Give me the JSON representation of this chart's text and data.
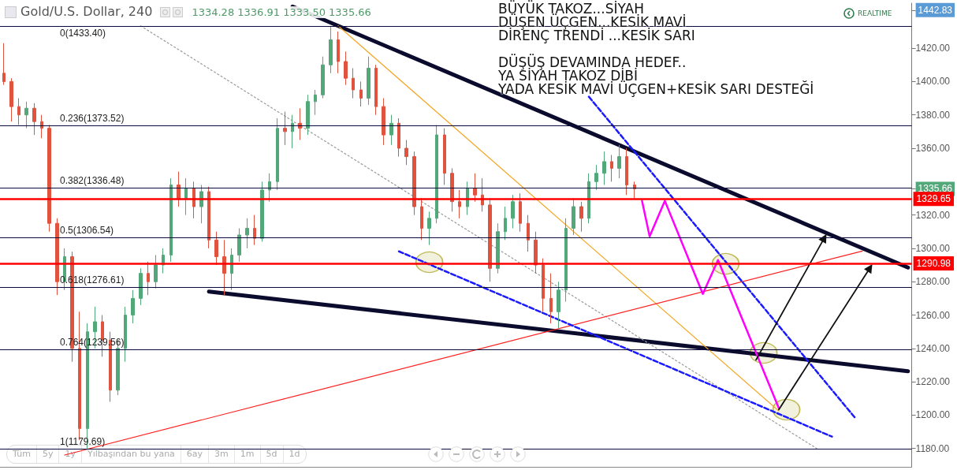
{
  "chart_data": {
    "type": "candlestick",
    "title": "Gold/U.S. Dollar, 240",
    "subtitle": "1334.28 1336.91 1333.50 1335.66",
    "annotations": [
      "BÜYÜK TAKOZ...SİYAH",
      "DÜŞEN ÜÇGEN...KESİK MAVİ",
      "DİRENÇ TRENDİ ...KESİK SARI",
      "DÜŞÜŞ DEVAMINDA HEDEF..",
      "YA SİYAH TAKOZ DİBİ",
      "YADA KESİK MAVİ ÜÇGEN+KESİK SARI DESTEĞİ",
      "REALTIME",
      "Tüm",
      "5y",
      "1y",
      "Yılbaşından bu yana",
      "6ay",
      "3m",
      "1m",
      "5d",
      "1d"
    ],
    "categories": [
      null,
      null,
      null,
      null,
      null,
      null,
      null,
      null,
      null,
      null,
      null,
      null,
      null,
      null,
      null,
      null,
      null,
      null,
      null,
      null,
      null,
      null,
      null,
      null,
      null,
      null,
      null,
      null,
      null,
      null,
      null,
      null,
      null,
      null,
      null,
      null,
      null,
      null,
      null,
      null,
      null,
      null,
      null,
      null,
      null,
      null,
      null,
      null,
      null,
      null,
      null,
      null,
      null,
      null,
      null,
      null,
      null,
      null,
      null,
      null,
      null,
      null,
      null,
      null,
      null,
      null,
      null,
      null,
      null,
      null,
      null,
      null,
      null,
      null,
      null,
      null,
      null,
      null,
      null,
      null,
      null,
      null,
      null,
      null,
      null,
      null,
      null,
      null,
      null,
      null,
      null,
      null,
      null,
      null,
      null,
      null,
      null,
      null,
      null,
      null,
      null,
      null,
      null,
      null,
      null,
      null,
      null,
      null,
      null,
      null,
      null,
      null,
      null,
      null,
      null,
      null,
      null,
      null,
      null,
      null
    ],
    "ohlc": [
      [
        1405,
        1423,
        1398,
        1400
      ],
      [
        1400,
        1402,
        1376,
        1385
      ],
      [
        1385,
        1390,
        1374,
        1380
      ],
      [
        1380,
        1388,
        1372,
        1384
      ],
      [
        1384,
        1387,
        1368,
        1376
      ],
      [
        1376,
        1380,
        1366,
        1372
      ],
      [
        1372,
        1374,
        1310,
        1315
      ],
      [
        1315,
        1318,
        1272,
        1280
      ],
      [
        1280,
        1300,
        1275,
        1295
      ],
      [
        1295,
        1298,
        1232,
        1240
      ],
      [
        1240,
        1262,
        1185,
        1192
      ],
      [
        1192,
        1255,
        1180,
        1250
      ],
      [
        1250,
        1265,
        1240,
        1256
      ],
      [
        1256,
        1260,
        1235,
        1245
      ],
      [
        1245,
        1250,
        1208,
        1215
      ],
      [
        1215,
        1245,
        1212,
        1240
      ],
      [
        1240,
        1265,
        1232,
        1260
      ],
      [
        1260,
        1275,
        1255,
        1270
      ],
      [
        1270,
        1288,
        1266,
        1285
      ],
      [
        1285,
        1292,
        1272,
        1280
      ],
      [
        1280,
        1296,
        1276,
        1290
      ],
      [
        1290,
        1300,
        1285,
        1296
      ],
      [
        1296,
        1342,
        1292,
        1338
      ],
      [
        1338,
        1346,
        1325,
        1330
      ],
      [
        1330,
        1342,
        1320,
        1336
      ],
      [
        1336,
        1340,
        1318,
        1325
      ],
      [
        1325,
        1338,
        1315,
        1334
      ],
      [
        1334,
        1337,
        1300,
        1305
      ],
      [
        1305,
        1310,
        1290,
        1295
      ],
      [
        1295,
        1305,
        1272,
        1285
      ],
      [
        1285,
        1300,
        1275,
        1296
      ],
      [
        1296,
        1312,
        1292,
        1308
      ],
      [
        1308,
        1318,
        1300,
        1312
      ],
      [
        1312,
        1320,
        1302,
        1306
      ],
      [
        1306,
        1340,
        1304,
        1335
      ],
      [
        1335,
        1345,
        1328,
        1340
      ],
      [
        1340,
        1378,
        1335,
        1372
      ],
      [
        1372,
        1382,
        1362,
        1370
      ],
      [
        1370,
        1380,
        1360,
        1375
      ],
      [
        1375,
        1384,
        1365,
        1372
      ],
      [
        1372,
        1392,
        1368,
        1388
      ],
      [
        1388,
        1395,
        1380,
        1392
      ],
      [
        1392,
        1415,
        1390,
        1410
      ],
      [
        1410,
        1433.4,
        1405,
        1425
      ],
      [
        1425,
        1430,
        1405,
        1412
      ],
      [
        1412,
        1418,
        1398,
        1402
      ],
      [
        1402,
        1408,
        1390,
        1395
      ],
      [
        1395,
        1400,
        1385,
        1390
      ],
      [
        1390,
        1415,
        1386,
        1408
      ],
      [
        1408,
        1410,
        1380,
        1385
      ],
      [
        1385,
        1390,
        1362,
        1368
      ],
      [
        1368,
        1380,
        1362,
        1375
      ],
      [
        1375,
        1378,
        1355,
        1360
      ],
      [
        1360,
        1365,
        1350,
        1355
      ],
      [
        1355,
        1358,
        1320,
        1325
      ],
      [
        1325,
        1330,
        1305,
        1312
      ],
      [
        1312,
        1322,
        1302,
        1318
      ],
      [
        1318,
        1374,
        1315,
        1368
      ],
      [
        1368,
        1372,
        1338,
        1345
      ],
      [
        1345,
        1348,
        1322,
        1328
      ],
      [
        1328,
        1335,
        1318,
        1325
      ],
      [
        1325,
        1340,
        1320,
        1336
      ],
      [
        1336,
        1345,
        1328,
        1332
      ],
      [
        1332,
        1342,
        1322,
        1326
      ],
      [
        1326,
        1330,
        1280,
        1288
      ],
      [
        1288,
        1315,
        1285,
        1310
      ],
      [
        1310,
        1325,
        1305,
        1318
      ],
      [
        1318,
        1332,
        1312,
        1328
      ],
      [
        1328,
        1333,
        1310,
        1315
      ],
      [
        1315,
        1320,
        1298,
        1305
      ],
      [
        1305,
        1310,
        1285,
        1290
      ],
      [
        1290,
        1294,
        1262,
        1270
      ],
      [
        1270,
        1285,
        1255,
        1262
      ],
      [
        1262,
        1280,
        1252,
        1275
      ],
      [
        1275,
        1318,
        1268,
        1312
      ],
      [
        1312,
        1330,
        1308,
        1325
      ],
      [
        1325,
        1328,
        1310,
        1318
      ],
      [
        1318,
        1345,
        1315,
        1340
      ],
      [
        1340,
        1350,
        1335,
        1345
      ],
      [
        1345,
        1358,
        1338,
        1352
      ],
      [
        1352,
        1356,
        1340,
        1348
      ],
      [
        1348,
        1362,
        1342,
        1355
      ],
      [
        1355,
        1360,
        1332,
        1338
      ],
      [
        1338,
        1340,
        1330,
        1335.66
      ],
      null,
      null,
      null,
      null,
      null,
      null,
      null,
      null,
      null,
      null,
      null,
      null,
      null,
      null,
      null,
      null,
      null,
      null,
      null,
      null,
      null,
      null,
      null,
      null,
      null,
      null,
      null,
      null,
      null,
      null,
      null,
      null,
      null,
      null,
      null,
      null
    ],
    "series": [
      {
        "type": "line",
        "color": "#0b0b2e",
        "line_style": "solid",
        "marker": "none",
        "values": [
          null,
          null,
          null,
          null,
          null,
          null,
          null,
          null,
          null,
          null,
          null,
          null,
          null,
          null,
          null,
          null,
          null,
          null,
          null,
          null,
          null,
          null,
          null,
          null,
          null,
          null,
          null,
          null,
          null,
          null,
          null,
          null,
          null,
          null,
          null,
          null,
          null,
          null,
          1445,
          null,
          null,
          null,
          null,
          null,
          null,
          null,
          null,
          null,
          null,
          null,
          null,
          null,
          null,
          null,
          null,
          null,
          null,
          null,
          null,
          null,
          null,
          null,
          null,
          null,
          null,
          null,
          null,
          null,
          null,
          null,
          null,
          null,
          null,
          null,
          null,
          null,
          null,
          null,
          null,
          null,
          null,
          null,
          null,
          null,
          null,
          null,
          null,
          null,
          null,
          null,
          null,
          null,
          null,
          null,
          null,
          null,
          null,
          null,
          null,
          null,
          null,
          null,
          null,
          null,
          null,
          null,
          null,
          null,
          null,
          null,
          null,
          null,
          null,
          null,
          null,
          null,
          null,
          null,
          null,
          1288.5
        ]
      },
      {
        "type": "line",
        "color": "#0b0b2e",
        "line_style": "solid",
        "marker": "none",
        "values": [
          null,
          null,
          null,
          null,
          null,
          null,
          null,
          null,
          null,
          null,
          null,
          null,
          null,
          null,
          null,
          null,
          null,
          null,
          null,
          null,
          null,
          null,
          null,
          null,
          null,
          null,
          null,
          1274.1,
          null,
          null,
          null,
          null,
          null,
          null,
          null,
          null,
          null,
          null,
          null,
          null,
          null,
          null,
          null,
          null,
          null,
          null,
          null,
          null,
          null,
          null,
          null,
          null,
          null,
          null,
          null,
          null,
          null,
          null,
          null,
          null,
          null,
          null,
          null,
          null,
          null,
          null,
          null,
          null,
          null,
          null,
          null,
          null,
          null,
          null,
          null,
          null,
          null,
          null,
          null,
          null,
          null,
          null,
          null,
          null,
          null,
          null,
          null,
          null,
          null,
          null,
          null,
          null,
          null,
          null,
          null,
          null,
          null,
          null,
          null,
          null,
          null,
          null,
          null,
          null,
          null,
          null,
          null,
          null,
          null,
          null,
          null,
          null,
          null,
          null,
          null,
          null,
          null,
          null,
          null,
          1226.3
        ]
      },
      {
        "type": "line",
        "color": "#f5a623",
        "line_style": "solid",
        "marker": "none",
        "values": [
          null,
          null,
          null,
          null,
          null,
          null,
          null,
          null,
          null,
          null,
          null,
          null,
          null,
          null,
          null,
          null,
          null,
          null,
          null,
          null,
          null,
          null,
          null,
          null,
          null,
          null,
          null,
          null,
          null,
          null,
          null,
          null,
          null,
          null,
          null,
          null,
          null,
          null,
          null,
          null,
          null,
          null,
          null,
          null,
          1433.4,
          null,
          null,
          null,
          null,
          null,
          null,
          null,
          null,
          null,
          null,
          null,
          null,
          null,
          null,
          null,
          null,
          null,
          null,
          null,
          null,
          null,
          null,
          null,
          null,
          null,
          null,
          null,
          null,
          null,
          null,
          null,
          null,
          null,
          null,
          null,
          null,
          null,
          null,
          null,
          null,
          null,
          null,
          null,
          null,
          null,
          null,
          null,
          null,
          null,
          null,
          null,
          null,
          null,
          null,
          null,
          null,
          null,
          1202.5,
          null,
          null,
          null,
          null,
          null,
          null,
          null,
          null,
          null,
          null,
          null,
          null,
          null,
          null,
          null,
          null,
          null
        ]
      },
      {
        "type": "line",
        "color": "#9a9a9a",
        "line_style": "dotted",
        "marker": "none",
        "values": [
          null,
          null,
          null,
          null,
          null,
          null,
          null,
          null,
          null,
          null,
          null,
          null,
          null,
          null,
          null,
          null,
          null,
          null,
          1433.4,
          null,
          null,
          null,
          null,
          null,
          null,
          null,
          null,
          null,
          null,
          null,
          null,
          null,
          null,
          null,
          null,
          null,
          null,
          null,
          null,
          null,
          null,
          null,
          null,
          null,
          null,
          null,
          null,
          null,
          null,
          null,
          null,
          null,
          null,
          null,
          null,
          null,
          null,
          null,
          null,
          null,
          null,
          null,
          null,
          null,
          null,
          null,
          null,
          null,
          null,
          null,
          null,
          null,
          null,
          null,
          null,
          null,
          null,
          null,
          null,
          null,
          null,
          null,
          null,
          null,
          null,
          null,
          null,
          null,
          null,
          null,
          null,
          null,
          null,
          null,
          null,
          null,
          null,
          null,
          null,
          null,
          null,
          null,
          null,
          null,
          null,
          null,
          null,
          1180,
          null,
          null,
          null,
          null,
          null,
          null,
          null,
          null,
          null,
          null,
          null,
          null
        ]
      },
      {
        "type": "line",
        "color": "#ff2020",
        "line_style": "solid",
        "marker": "none",
        "values": [
          null,
          null,
          null,
          null,
          null,
          null,
          null,
          null,
          1176.1,
          null,
          null,
          null,
          null,
          null,
          null,
          null,
          null,
          null,
          null,
          null,
          null,
          null,
          null,
          null,
          null,
          null,
          null,
          null,
          null,
          null,
          null,
          null,
          null,
          null,
          null,
          null,
          null,
          null,
          null,
          null,
          null,
          null,
          null,
          null,
          null,
          null,
          null,
          null,
          null,
          null,
          null,
          null,
          null,
          null,
          null,
          null,
          null,
          null,
          null,
          null,
          null,
          null,
          null,
          null,
          null,
          null,
          null,
          null,
          null,
          null,
          null,
          null,
          null,
          null,
          null,
          null,
          null,
          null,
          null,
          null,
          null,
          null,
          null,
          null,
          null,
          null,
          null,
          null,
          null,
          null,
          null,
          null,
          null,
          null,
          null,
          null,
          null,
          null,
          null,
          null,
          null,
          null,
          null,
          null,
          null,
          null,
          null,
          null,
          null,
          null,
          null,
          null,
          null,
          1298.4,
          null,
          null,
          null,
          null,
          null,
          null
        ]
      },
      {
        "type": "line",
        "color": "#1a1aff",
        "line_style": "dashed",
        "marker": "none",
        "values": [
          null,
          null,
          null,
          null,
          null,
          null,
          null,
          null,
          null,
          null,
          null,
          null,
          null,
          null,
          null,
          null,
          null,
          null,
          null,
          null,
          null,
          null,
          null,
          null,
          null,
          null,
          null,
          null,
          null,
          null,
          null,
          null,
          null,
          null,
          null,
          null,
          null,
          null,
          null,
          null,
          null,
          null,
          null,
          null,
          null,
          null,
          null,
          null,
          null,
          null,
          null,
          null,
          1298.2,
          null,
          null,
          null,
          null,
          null,
          null,
          null,
          null,
          null,
          null,
          null,
          null,
          null,
          null,
          null,
          null,
          null,
          null,
          null,
          null,
          null,
          null,
          null,
          null,
          null,
          null,
          null,
          null,
          null,
          null,
          null,
          null,
          null,
          null,
          null,
          null,
          null,
          null,
          null,
          null,
          null,
          null,
          null,
          null,
          null,
          null,
          null,
          null,
          null,
          null,
          null,
          null,
          null,
          null,
          null,
          null,
          1187.1,
          null,
          null,
          null,
          null,
          null,
          null,
          null,
          null,
          null,
          null
        ]
      },
      {
        "type": "line",
        "color": "#1a1aff",
        "line_style": "dashed",
        "marker": "none",
        "values": [
          null,
          null,
          null,
          null,
          null,
          null,
          null,
          null,
          null,
          null,
          null,
          null,
          null,
          null,
          null,
          null,
          null,
          null,
          null,
          null,
          null,
          null,
          null,
          null,
          null,
          null,
          null,
          null,
          null,
          null,
          null,
          null,
          null,
          null,
          null,
          null,
          null,
          null,
          null,
          null,
          null,
          null,
          null,
          null,
          null,
          null,
          null,
          null,
          null,
          null,
          null,
          null,
          null,
          null,
          null,
          null,
          null,
          null,
          null,
          null,
          null,
          null,
          null,
          null,
          null,
          null,
          null,
          null,
          null,
          null,
          null,
          null,
          null,
          null,
          null,
          null,
          null,
          1390.9,
          null,
          null,
          null,
          null,
          null,
          null,
          null,
          null,
          null,
          null,
          null,
          null,
          null,
          null,
          null,
          null,
          null,
          null,
          null,
          null,
          null,
          null,
          null,
          null,
          null,
          null,
          null,
          null,
          null,
          null,
          null,
          null,
          null,
          null,
          1198.6,
          null,
          null,
          null,
          null,
          null,
          null,
          null
        ]
      },
      {
        "type": "line",
        "color": "#ff00ff",
        "line_style": "solid",
        "marker": "none",
        "values": [
          null,
          null,
          null,
          null,
          null,
          null,
          null,
          null,
          null,
          null,
          null,
          null,
          null,
          null,
          null,
          null,
          null,
          null,
          null,
          null,
          null,
          null,
          null,
          null,
          null,
          null,
          null,
          null,
          null,
          null,
          null,
          null,
          null,
          null,
          null,
          null,
          null,
          null,
          null,
          null,
          null,
          null,
          null,
          null,
          null,
          null,
          null,
          null,
          null,
          null,
          null,
          null,
          null,
          null,
          null,
          null,
          null,
          null,
          null,
          null,
          null,
          null,
          null,
          null,
          null,
          null,
          null,
          null,
          null,
          null,
          null,
          null,
          null,
          null,
          null,
          null,
          null,
          null,
          null,
          null,
          null,
          null,
          null,
          null,
          1328.5,
          1307.2,
          null,
          1328.5,
          null,
          null,
          null,
          null,
          1272.7,
          null,
          1293.0,
          null,
          null,
          null,
          null,
          null,
          null,
          null,
          1204.2,
          null,
          null,
          null,
          null,
          null,
          null,
          null,
          null,
          null,
          null,
          null,
          null,
          null,
          null,
          null,
          null,
          null
        ]
      },
      {
        "type": "scatter",
        "color": "#b0aa30",
        "marker": "circle",
        "values": [
          null,
          null,
          null,
          null,
          null,
          null,
          null,
          null,
          null,
          null,
          null,
          null,
          null,
          null,
          null,
          null,
          null,
          null,
          null,
          null,
          null,
          null,
          null,
          null,
          null,
          null,
          null,
          null,
          null,
          null,
          null,
          null,
          null,
          null,
          null,
          null,
          null,
          null,
          null,
          null,
          null,
          null,
          null,
          null,
          null,
          null,
          null,
          null,
          null,
          null,
          null,
          null,
          null,
          null,
          null,
          null,
          1291.7,
          null,
          null,
          null,
          null,
          null,
          null,
          null,
          null,
          null,
          null,
          null,
          null,
          null,
          null,
          null,
          null,
          null,
          null,
          null,
          null,
          null,
          null,
          null,
          null,
          null,
          null,
          null,
          null,
          null,
          null,
          null,
          null,
          null,
          null,
          null,
          null,
          null,
          null,
          1290.7,
          null,
          null,
          null,
          null,
          1237.3,
          null,
          null,
          1203.3,
          null,
          null,
          null,
          null,
          null,
          null,
          null,
          null,
          null,
          null,
          null,
          null,
          null,
          null,
          null,
          null
        ]
      },
      {
        "type": "line",
        "color": "#111111",
        "line_style": "solid",
        "marker": "triangle",
        "values": [
          null,
          null,
          null,
          null,
          null,
          null,
          null,
          null,
          null,
          null,
          null,
          null,
          null,
          null,
          null,
          null,
          null,
          null,
          null,
          null,
          null,
          null,
          null,
          null,
          null,
          null,
          null,
          null,
          null,
          null,
          null,
          null,
          null,
          null,
          null,
          null,
          null,
          null,
          null,
          null,
          null,
          null,
          null,
          null,
          null,
          null,
          null,
          null,
          null,
          null,
          null,
          null,
          null,
          null,
          null,
          null,
          null,
          null,
          null,
          null,
          null,
          null,
          null,
          null,
          null,
          null,
          null,
          null,
          null,
          null,
          null,
          null,
          null,
          null,
          null,
          null,
          null,
          null,
          null,
          null,
          null,
          null,
          null,
          null,
          null,
          null,
          null,
          null,
          null,
          null,
          null,
          null,
          null,
          null,
          null,
          null,
          null,
          null,
          null,
          1233.1,
          null,
          null,
          null,
          null,
          null,
          null,
          null,
          null,
          1306.3,
          null,
          null,
          null,
          null,
          null,
          null,
          null,
          null,
          null,
          null,
          null
        ]
      },
      {
        "type": "line",
        "color": "#111111",
        "line_style": "solid",
        "marker": "triangle",
        "values": [
          null,
          null,
          null,
          null,
          null,
          null,
          null,
          null,
          null,
          null,
          null,
          null,
          null,
          null,
          null,
          null,
          null,
          null,
          null,
          null,
          null,
          null,
          null,
          null,
          null,
          null,
          null,
          null,
          null,
          null,
          null,
          null,
          null,
          null,
          null,
          null,
          null,
          null,
          null,
          null,
          null,
          null,
          null,
          null,
          null,
          null,
          null,
          null,
          null,
          null,
          null,
          null,
          null,
          null,
          null,
          null,
          null,
          null,
          null,
          null,
          null,
          null,
          null,
          null,
          null,
          null,
          null,
          null,
          null,
          null,
          null,
          null,
          null,
          null,
          null,
          null,
          null,
          null,
          null,
          null,
          null,
          null,
          null,
          null,
          null,
          null,
          null,
          null,
          null,
          null,
          null,
          null,
          null,
          null,
          null,
          null,
          null,
          null,
          null,
          null,
          null,
          null,
          1203.3,
          null,
          null,
          null,
          null,
          null,
          null,
          null,
          null,
          null,
          null,
          null,
          1288.3,
          null,
          null,
          null,
          null,
          null
        ]
      }
    ],
    "ref_lines": [
      {
        "axis": "y",
        "value": 1433.4,
        "label": "0(1433.40)",
        "color": "#0c0c3c"
      },
      {
        "axis": "y",
        "value": 1373.52,
        "label": "0.236(1373.52)",
        "color": "#0c0c3c"
      },
      {
        "axis": "y",
        "value": 1336.48,
        "label": "0.382(1336.48)",
        "color": "#0c0c3c"
      },
      {
        "axis": "y",
        "value": 1306.54,
        "label": "0.5(1306.54)",
        "color": "#0c0c3c"
      },
      {
        "axis": "y",
        "value": 1276.61,
        "label": "0.618(1276.61)",
        "color": "#0c0c3c"
      },
      {
        "axis": "y",
        "value": 1239.56,
        "label": "0.764(1239.56)",
        "color": "#0c0c3c"
      },
      {
        "axis": "y",
        "value": 1179.69,
        "label": "1(1179.69)",
        "color": "#0c0c3c"
      },
      {
        "axis": "y",
        "value": 1329.65,
        "label": "1329.65",
        "color": "#ff0000"
      },
      {
        "axis": "y",
        "value": 1290.98,
        "label": "1290.98",
        "color": "#ff0000"
      }
    ],
    "ylim": [
      1169,
      1447
    ],
    "yticks": [
      {
        "value": 1180,
        "label": "1180.00"
      },
      {
        "value": 1200,
        "label": "1200.00"
      },
      {
        "value": 1220,
        "label": "1220.00"
      },
      {
        "value": 1240,
        "label": "1240.00"
      },
      {
        "value": 1260,
        "label": "1260.00"
      },
      {
        "value": 1280,
        "label": "1280.00"
      },
      {
        "value": 1300,
        "label": "1300.00"
      },
      {
        "value": 1320,
        "label": "1320.00"
      },
      1335.66,
      {
        "value": 1360,
        "label": "1360.00"
      },
      {
        "value": 1380,
        "label": "1380.00"
      },
      {
        "value": 1400,
        "label": "1400.00"
      },
      {
        "value": 1420,
        "label": "1420.00"
      },
      1442.83
    ],
    "tick_labels": "y"
  }
}
